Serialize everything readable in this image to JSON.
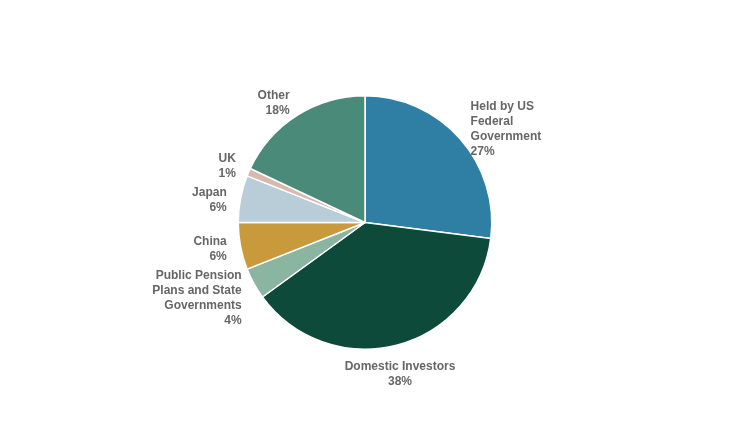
{
  "chart_data": {
    "type": "pie",
    "categories": [
      "Held by US\nFederal\nGovernment",
      "Domestic Investors",
      "Public Pension\nPlans and State\nGovernments",
      "China",
      "Japan",
      "UK",
      "Other"
    ],
    "values": [
      27,
      38,
      4,
      6,
      6,
      1,
      18
    ],
    "value_labels": [
      "27%",
      "38%",
      "4%",
      "6%",
      "6%",
      "1%",
      "18%"
    ],
    "colors": [
      "#2e7fa3",
      "#0d4a3a",
      "#8ab5a0",
      "#c89a3c",
      "#b8cdd8",
      "#d9b8b0",
      "#4a8a78"
    ],
    "data_labels": true
  }
}
